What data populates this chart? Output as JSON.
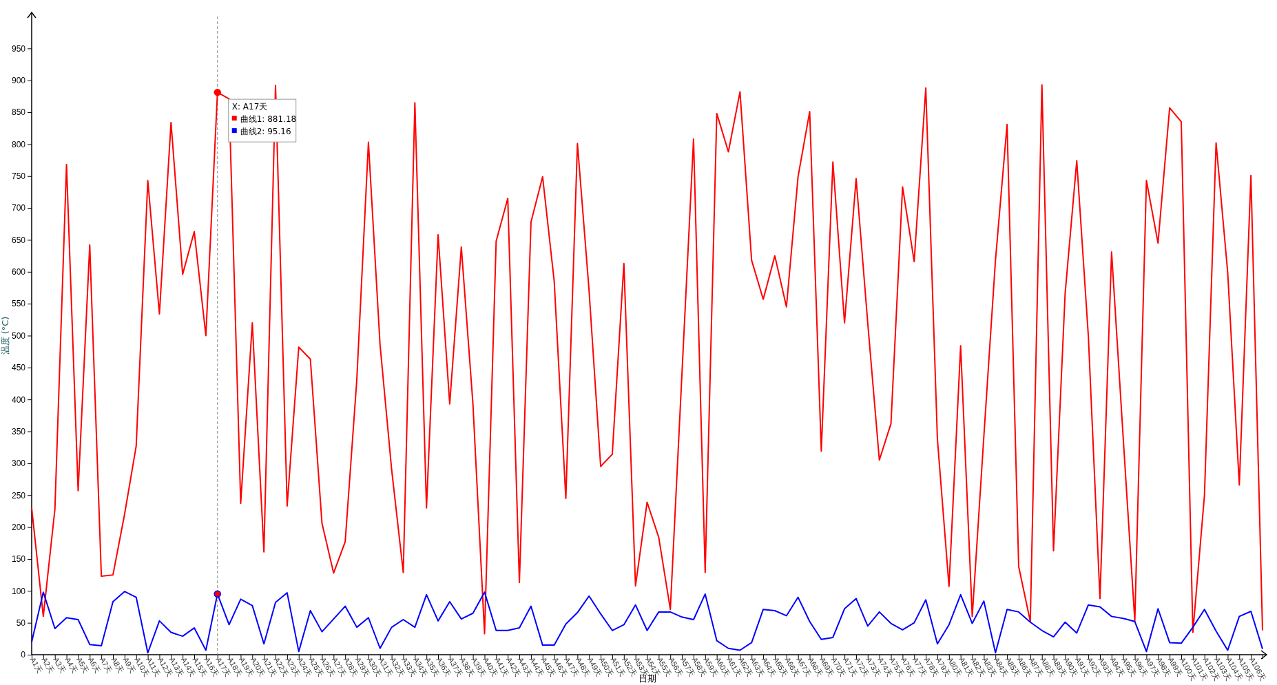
{
  "chart_data": {
    "type": "line",
    "xlabel": "日期",
    "ylabel": "温度 (°C)",
    "categories": [
      "A1天",
      "A2天",
      "A3天",
      "A4天",
      "A5天",
      "A6天",
      "A7天",
      "A8天",
      "A9天",
      "A10天",
      "A11天",
      "A12天",
      "A13天",
      "A14天",
      "A15天",
      "A16天",
      "A17天",
      "A18天",
      "A19天",
      "A20天",
      "A21天",
      "A22天",
      "A23天",
      "A24天",
      "A25天",
      "A26天",
      "A27天",
      "A28天",
      "A29天",
      "A30天",
      "A31天",
      "A32天",
      "A33天",
      "A34天",
      "A35天",
      "A36天",
      "A37天",
      "A38天",
      "A39天",
      "A40天",
      "A41天",
      "A42天",
      "A43天",
      "A44天",
      "A45天",
      "A46天",
      "A47天",
      "A48天",
      "A49天",
      "A50天",
      "A51天",
      "A52天",
      "A53天",
      "A54天",
      "A55天",
      "A56天",
      "A57天",
      "A58天",
      "A59天",
      "A60天",
      "A61天",
      "A62天",
      "A63天",
      "A64天",
      "A65天",
      "A66天",
      "A67天",
      "A68天",
      "A69天",
      "A70天",
      "A71天",
      "A72天",
      "A73天",
      "A74天",
      "A75天",
      "A76天",
      "A77天",
      "A78天",
      "A79天",
      "A80天",
      "A81天",
      "A82天",
      "A83天",
      "A84天",
      "A85天",
      "A86天",
      "A87天",
      "A88天",
      "A89天",
      "A90天",
      "A91天",
      "A92天",
      "A93天",
      "A94天",
      "A95天",
      "A96天",
      "A97天",
      "A98天",
      "A99天",
      "A100天",
      "A101天",
      "A102天",
      "A103天",
      "A104天",
      "A105天",
      "A106天",
      null
    ],
    "series": [
      {
        "color": "#ff0000",
        "values": [
          230,
          60,
          228,
          768,
          257,
          642,
          123,
          125,
          220,
          327,
          743,
          534,
          834,
          596,
          663,
          500,
          881.18,
          871,
          237,
          520,
          161,
          892,
          233,
          482,
          463,
          206,
          128,
          177,
          431,
          803,
          486,
          290,
          129,
          865,
          230,
          658,
          393,
          639,
          393,
          33,
          648,
          715,
          113,
          678,
          749,
          585,
          245,
          801,
          571,
          295,
          314,
          613,
          108,
          239,
          184,
          71,
          440,
          808,
          129,
          848,
          788,
          882,
          618,
          557,
          625,
          545,
          749,
          851,
          319,
          772,
          520,
          746,
          520,
          305,
          362,
          733,
          616,
          888,
          338,
          107,
          484,
          60,
          342,
          618,
          831,
          138,
          52,
          893,
          163,
          566,
          774,
          499,
          88,
          631,
          340,
          53,
          743,
          645,
          857,
          835,
          35,
          250,
          802,
          599,
          266,
          751,
          38
        ]
      },
      {
        "color": "#0000ff",
        "values": [
          20,
          98,
          41,
          58,
          55,
          16,
          14,
          83,
          99,
          90,
          3,
          53,
          35,
          29,
          42,
          7,
          95.16,
          47,
          87,
          77,
          17,
          82,
          97,
          5,
          69,
          36,
          56,
          76,
          43,
          58,
          10,
          43,
          55,
          43,
          94,
          53,
          83,
          56,
          65,
          98,
          38,
          38,
          42,
          76,
          15,
          15,
          48,
          66,
          92,
          64,
          38,
          47,
          78,
          38,
          67,
          67,
          59,
          55,
          95,
          22,
          10,
          7,
          19,
          71,
          69,
          61,
          90,
          52,
          24,
          27,
          72,
          88,
          45,
          67,
          49,
          39,
          50,
          86,
          17,
          47,
          94,
          49,
          84,
          3,
          71,
          67,
          51,
          38,
          28,
          51,
          34,
          78,
          75,
          60,
          57,
          52,
          5,
          72,
          19,
          18,
          43,
          71,
          37,
          7,
          60,
          68,
          9
        ]
      }
    ],
    "ylim": [
      0,
      1000
    ],
    "yticks": [
      0,
      50,
      100,
      150,
      200,
      250,
      300,
      350,
      400,
      450,
      500,
      550,
      600,
      650,
      700,
      750,
      800,
      850,
      900,
      950
    ],
    "grid": false,
    "legend": false,
    "marker": "none",
    "line_style": "solid",
    "ref_lines": [
      {
        "axis": "x",
        "value": "A17天",
        "line_style": "dashed",
        "color": "#888888"
      }
    ],
    "annotations": [
      {
        "text": "X: A17天",
        "x": "A17天",
        "y": 881.18
      },
      "曲线1: 881.18",
      "曲线2: 95.16"
    ]
  }
}
